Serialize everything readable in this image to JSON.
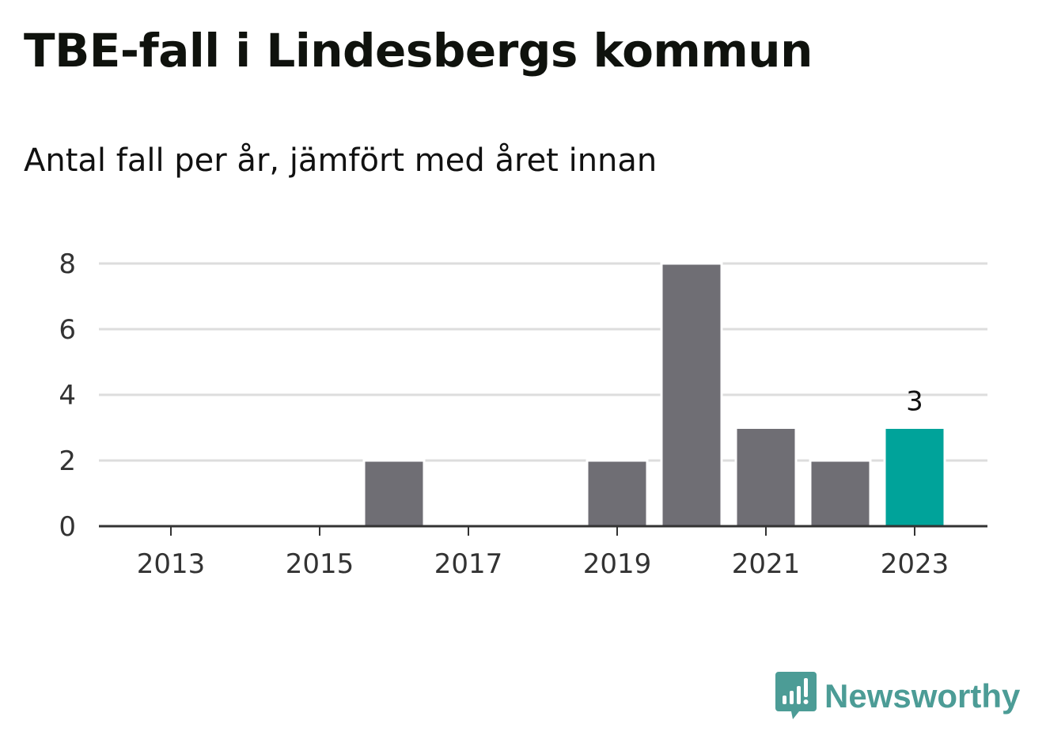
{
  "header": {
    "title": "TBE-fall i Lindesbergs kommun",
    "subtitle": "Antal fall per år, jämfört med året innan"
  },
  "brand": {
    "name": "Newsworthy",
    "icon": "newsworthy-logo-icon",
    "color": "#4c9c96"
  },
  "colors": {
    "bar": "#6f6e74",
    "highlight": "#00a39a",
    "grid": "#dddddd",
    "axis": "#333333"
  },
  "chart_data": {
    "type": "bar",
    "categories": [
      "2013",
      "2014",
      "2015",
      "2016",
      "2017",
      "2018",
      "2019",
      "2020",
      "2021",
      "2022",
      "2023"
    ],
    "values": [
      0,
      0,
      0,
      2,
      0,
      0,
      2,
      8,
      3,
      2,
      3
    ],
    "highlight_index": 10,
    "data_labels": [
      {
        "index": 10,
        "text": "3"
      }
    ],
    "x_tick_labels": [
      "2013",
      "2015",
      "2017",
      "2019",
      "2021",
      "2023"
    ],
    "y_ticks": [
      0,
      2,
      4,
      6,
      8
    ],
    "ylim": [
      0,
      8
    ],
    "xlabel": "",
    "ylabel": "",
    "grid": true,
    "legend": "none"
  }
}
